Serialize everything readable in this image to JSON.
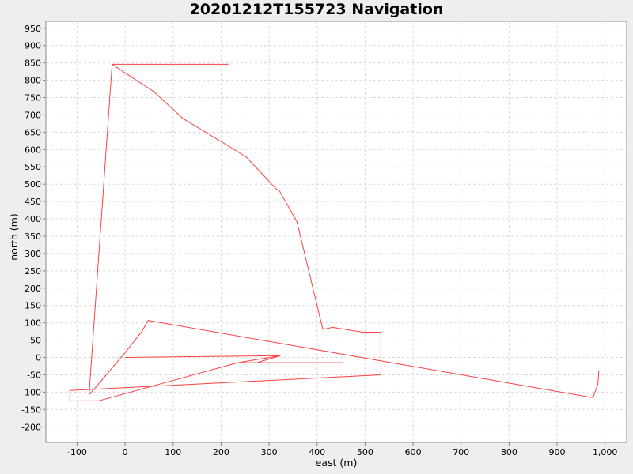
{
  "chart_data": {
    "type": "line",
    "title": "20201212T155723 Navigation",
    "xlabel": "east (m)",
    "ylabel": "north (m)",
    "xlim": [
      -165,
      1045
    ],
    "ylim": [
      -245,
      970
    ],
    "x_ticks": [
      "-100",
      "0",
      "100",
      "200",
      "300",
      "400",
      "500",
      "600",
      "700",
      "800",
      "900",
      "1,000"
    ],
    "x_tick_values": [
      -100,
      0,
      100,
      200,
      300,
      400,
      500,
      600,
      700,
      800,
      900,
      1000
    ],
    "y_tick_values": [
      -200,
      -150,
      -100,
      -50,
      0,
      50,
      100,
      150,
      200,
      250,
      300,
      350,
      400,
      450,
      500,
      550,
      600,
      650,
      700,
      750,
      800,
      850,
      900,
      950
    ],
    "grid": true,
    "legend": "none",
    "series": [
      {
        "color": "#ff4040",
        "x": [
          0,
          322,
          275,
          323,
          235,
          455
        ],
        "y": [
          0,
          5,
          -15,
          5,
          -15,
          -15
        ],
        "values": [
          0,
          5,
          -15,
          5,
          -15,
          -15
        ]
      },
      {
        "color": "#ff4040",
        "x": [
          235,
          -55,
          -115,
          -115,
          533,
          533,
          495,
          432,
          412,
          358,
          322,
          315,
          252,
          120,
          60,
          -27,
          -75,
          -73,
          0,
          35,
          48,
          975,
          985,
          987
        ],
        "y": [
          -15,
          -125,
          -125,
          -95,
          -50,
          73,
          73,
          87,
          81,
          392,
          480,
          486,
          579,
          690,
          767,
          846,
          -105,
          -105,
          14,
          75,
          107,
          -116,
          -77,
          -38
        ],
        "values": [
          -15,
          -125,
          -125,
          -95,
          -50,
          73,
          73,
          87,
          81,
          392,
          480,
          486,
          579,
          690,
          767,
          846,
          -105,
          -105,
          14,
          75,
          107,
          -116,
          -77,
          -38
        ]
      },
      {
        "color": "#ff4040",
        "x": [
          -27,
          215
        ],
        "y": [
          846,
          846
        ],
        "values": [
          846,
          846
        ]
      }
    ]
  }
}
